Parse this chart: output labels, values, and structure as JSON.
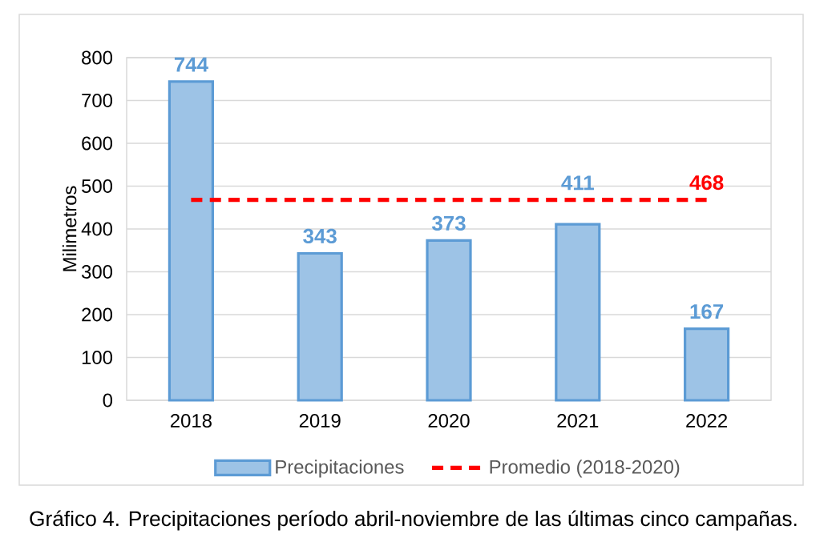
{
  "chart_data": {
    "type": "bar",
    "categories": [
      "2018",
      "2019",
      "2020",
      "2021",
      "2022"
    ],
    "ylabel": "Milimetros",
    "ylim": [
      0,
      800
    ],
    "yticks": [
      0,
      100,
      200,
      300,
      400,
      500,
      600,
      700,
      800
    ],
    "grid": "y",
    "legend": "bottom",
    "annotations": [
      "Gráfico 4. Precipitaciones período abril-noviembre de las últimas cinco campañas."
    ],
    "series": [
      {
        "name": "Precipitaciones",
        "color": "#9dc3e6",
        "values": [
          744,
          343,
          373,
          411,
          167
        ],
        "value_labels": [
          "744",
          "343",
          "373",
          "411",
          "167"
        ]
      },
      {
        "name": "Promedio (2018-2020)",
        "type": "line",
        "color": "#ff0000",
        "line_style": "dashed",
        "marker": "none",
        "values": [
          468,
          468,
          468,
          468,
          468
        ],
        "value_labels": [
          null,
          null,
          null,
          null,
          "468"
        ]
      }
    ]
  }
}
